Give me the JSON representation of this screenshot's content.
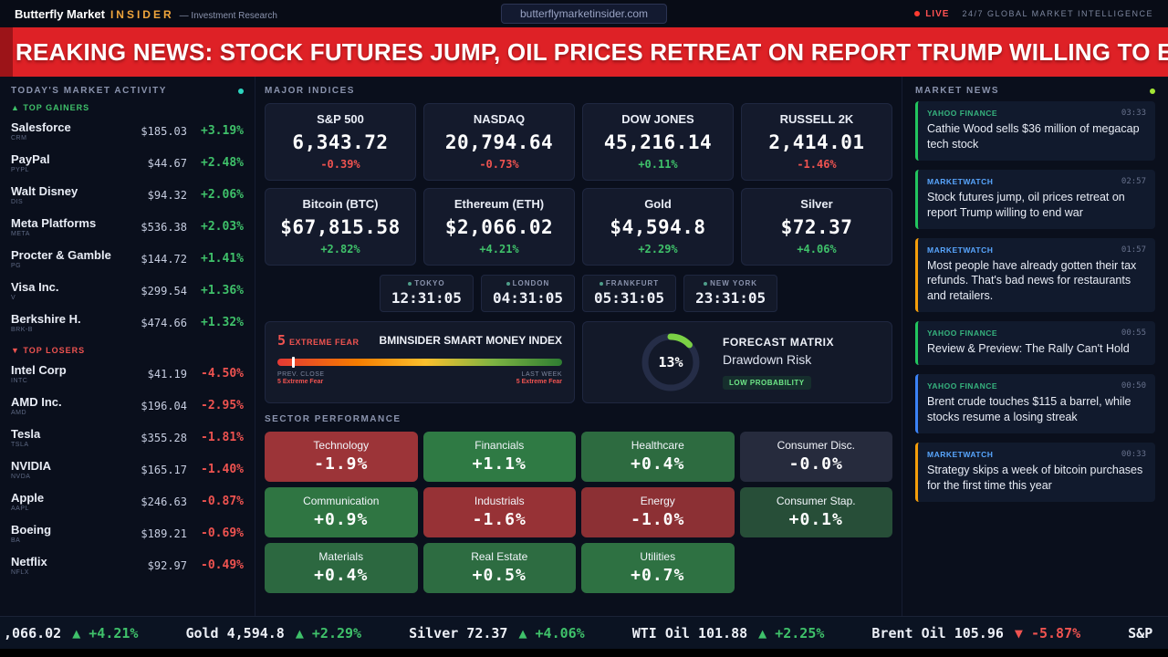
{
  "colors": {
    "positive": "#3fc16a",
    "negative": "#ef5350",
    "banner_red": "#de2126",
    "brand_accent": "#f0a63c"
  },
  "topbar": {
    "brand_primary": "Butterfly Market",
    "brand_secondary": "INSIDER",
    "brand_tagline": "— Investment Research",
    "domain": "butterflymarketinsider.com",
    "live_label": "LIVE",
    "right_tagline": "24/7 GLOBAL MARKET INTELLIGENCE"
  },
  "breaking": {
    "text": "REAKING NEWS: STOCK FUTURES JUMP, OIL PRICES RETREAT ON REPORT TRUMP WILLING TO END"
  },
  "sidebar": {
    "title": "TODAY'S MARKET ACTIVITY",
    "gainers_label": "▲ TOP GAINERS",
    "losers_label": "▼ TOP LOSERS",
    "gainers": [
      {
        "name": "Salesforce",
        "ticker": "CRM",
        "price": "$185.03",
        "change": "+3.19%",
        "dir": "up"
      },
      {
        "name": "PayPal",
        "ticker": "PYPL",
        "price": "$44.67",
        "change": "+2.48%",
        "dir": "up"
      },
      {
        "name": "Walt Disney",
        "ticker": "DIS",
        "price": "$94.32",
        "change": "+2.06%",
        "dir": "up"
      },
      {
        "name": "Meta Platforms",
        "ticker": "META",
        "price": "$536.38",
        "change": "+2.03%",
        "dir": "up"
      },
      {
        "name": "Procter & Gamble",
        "ticker": "PG",
        "price": "$144.72",
        "change": "+1.41%",
        "dir": "up"
      },
      {
        "name": "Visa Inc.",
        "ticker": "V",
        "price": "$299.54",
        "change": "+1.36%",
        "dir": "up"
      },
      {
        "name": "Berkshire H.",
        "ticker": "BRK-B",
        "price": "$474.66",
        "change": "+1.32%",
        "dir": "up"
      }
    ],
    "losers": [
      {
        "name": "Intel Corp",
        "ticker": "INTC",
        "price": "$41.19",
        "change": "-4.50%",
        "dir": "down"
      },
      {
        "name": "AMD Inc.",
        "ticker": "AMD",
        "price": "$196.04",
        "change": "-2.95%",
        "dir": "down"
      },
      {
        "name": "Tesla",
        "ticker": "TSLA",
        "price": "$355.28",
        "change": "-1.81%",
        "dir": "down"
      },
      {
        "name": "NVIDIA",
        "ticker": "NVDA",
        "price": "$165.17",
        "change": "-1.40%",
        "dir": "down"
      },
      {
        "name": "Apple",
        "ticker": "AAPL",
        "price": "$246.63",
        "change": "-0.87%",
        "dir": "down"
      },
      {
        "name": "Boeing",
        "ticker": "BA",
        "price": "$189.21",
        "change": "-0.69%",
        "dir": "down"
      },
      {
        "name": "Netflix",
        "ticker": "NFLX",
        "price": "$92.97",
        "change": "-0.49%",
        "dir": "down"
      }
    ]
  },
  "indices": {
    "title": "MAJOR INDICES",
    "cards": [
      {
        "label": "S&P 500",
        "value": "6,343.72",
        "change": "-0.39%",
        "dir": "down"
      },
      {
        "label": "NASDAQ",
        "value": "20,794.64",
        "change": "-0.73%",
        "dir": "down"
      },
      {
        "label": "DOW JONES",
        "value": "45,216.14",
        "change": "+0.11%",
        "dir": "up"
      },
      {
        "label": "RUSSELL 2K",
        "value": "2,414.01",
        "change": "-1.46%",
        "dir": "down"
      }
    ],
    "assets": [
      {
        "label": "Bitcoin (BTC)",
        "value": "$67,815.58",
        "change": "+2.82%",
        "dir": "up"
      },
      {
        "label": "Ethereum (ETH)",
        "value": "$2,066.02",
        "change": "+4.21%",
        "dir": "up"
      },
      {
        "label": "Gold",
        "value": "$4,594.8",
        "change": "+2.29%",
        "dir": "up"
      },
      {
        "label": "Silver",
        "value": "$72.37",
        "change": "+4.06%",
        "dir": "up"
      }
    ]
  },
  "clocks": [
    {
      "city": "TOKYO",
      "time": "12:31:05"
    },
    {
      "city": "LONDON",
      "time": "04:31:05"
    },
    {
      "city": "FRANKFURT",
      "time": "05:31:05"
    },
    {
      "city": "NEW YORK",
      "time": "23:31:05"
    }
  ],
  "fear_gauge": {
    "value": "5",
    "label": "EXTREME FEAR",
    "title": "BMINSIDER SMART MONEY INDEX",
    "pct": 5,
    "prev_close_label": "PREV. CLOSE",
    "prev_close_value": "5 Extreme Fear",
    "last_week_label": "LAST WEEK",
    "last_week_value": "5 Extreme Fear"
  },
  "forecast": {
    "pct": 13,
    "pct_label": "13%",
    "title": "FORECAST MATRIX",
    "subtitle": "Drawdown Risk",
    "badge": "LOW PROBABILITY"
  },
  "sectors": {
    "title": "SECTOR PERFORMANCE",
    "tiles": [
      {
        "label": "Technology",
        "value": "-1.9%",
        "bg": "#9c3438"
      },
      {
        "label": "Financials",
        "value": "+1.1%",
        "bg": "#2f7a44"
      },
      {
        "label": "Healthcare",
        "value": "+0.4%",
        "bg": "#2d6b40"
      },
      {
        "label": "Consumer Disc.",
        "value": "-0.0%",
        "bg": "#262b3d"
      },
      {
        "label": "Communication",
        "value": "+0.9%",
        "bg": "#2f7542"
      },
      {
        "label": "Industrials",
        "value": "-1.6%",
        "bg": "#973236"
      },
      {
        "label": "Energy",
        "value": "-1.0%",
        "bg": "#8c3034"
      },
      {
        "label": "Consumer Stap.",
        "value": "+0.1%",
        "bg": "#274e38"
      },
      {
        "label": "Materials",
        "value": "+0.4%",
        "bg": "#2c6840"
      },
      {
        "label": "Real Estate",
        "value": "+0.5%",
        "bg": "#2d6c41"
      },
      {
        "label": "Utilities",
        "value": "+0.7%",
        "bg": "#2e7142"
      }
    ]
  },
  "news": {
    "title": "MARKET NEWS",
    "items": [
      {
        "source": "YAHOO FINANCE",
        "source_color": "#36b37e",
        "accent": "#22c55e",
        "time": "03:33",
        "headline": "Cathie Wood sells $36 million of megacap tech stock"
      },
      {
        "source": "MARKETWATCH",
        "source_color": "#58a6ff",
        "accent": "#22c55e",
        "time": "02:57",
        "headline": "Stock futures jump, oil prices retreat on report Trump willing to end war"
      },
      {
        "source": "MARKETWATCH",
        "source_color": "#58a6ff",
        "accent": "#f59e0b",
        "time": "01:57",
        "headline": "Most people have already gotten their tax refunds. That's bad news for restaurants and retailers."
      },
      {
        "source": "YAHOO FINANCE",
        "source_color": "#36b37e",
        "accent": "#22c55e",
        "time": "00:55",
        "headline": "Review & Preview: The Rally Can't Hold"
      },
      {
        "source": "YAHOO FINANCE",
        "source_color": "#36b37e",
        "accent": "#3b82f6",
        "time": "00:50",
        "headline": "Brent crude touches $115 a barrel, while stocks resume a losing streak"
      },
      {
        "source": "MARKETWATCH",
        "source_color": "#58a6ff",
        "accent": "#f59e0b",
        "time": "00:33",
        "headline": "Strategy skips a week of bitcoin purchases for the first time this year"
      }
    ]
  },
  "ticker": {
    "items": [
      {
        "label": ",066.02",
        "change": "▲ +4.21%",
        "dir": "up"
      },
      {
        "label": "Gold 4,594.8",
        "change": "▲ +2.29%",
        "dir": "up"
      },
      {
        "label": "Silver 72.37",
        "change": "▲ +4.06%",
        "dir": "up"
      },
      {
        "label": "WTI Oil 101.88",
        "change": "▲ +2.25%",
        "dir": "up"
      },
      {
        "label": "Brent Oil 105.96",
        "change": "▼ -5.87%",
        "dir": "down"
      },
      {
        "label": "S&P",
        "change": "",
        "dir": "up"
      }
    ]
  }
}
